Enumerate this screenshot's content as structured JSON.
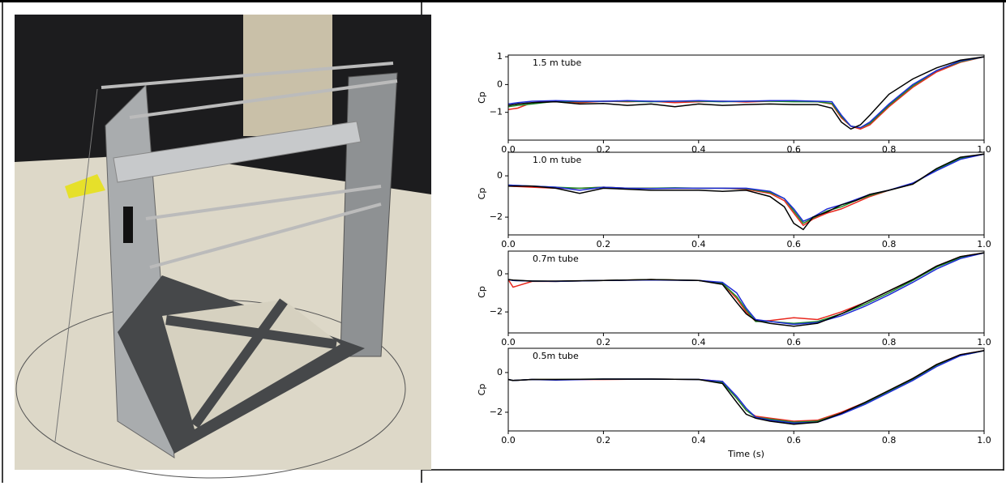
{
  "chart_data": [
    {
      "type": "line",
      "annotation": "1.5 m tube",
      "y_label": "Cp",
      "x": [
        0,
        0.02,
        0.05,
        0.1,
        0.15,
        0.2,
        0.25,
        0.3,
        0.35,
        0.4,
        0.45,
        0.5,
        0.55,
        0.6,
        0.65,
        0.68,
        0.7,
        0.72,
        0.74,
        0.76,
        0.8,
        0.85,
        0.9,
        0.95,
        1.0
      ],
      "series": [
        {
          "color": "#e8281e",
          "values": [
            -0.9,
            -0.85,
            -0.65,
            -0.6,
            -0.65,
            -0.6,
            -0.62,
            -0.6,
            -0.65,
            -0.62,
            -0.6,
            -0.63,
            -0.6,
            -0.6,
            -0.62,
            -0.7,
            -1.2,
            -1.5,
            -1.6,
            -1.45,
            -0.8,
            -0.1,
            0.45,
            0.8,
            1.0
          ]
        },
        {
          "color": "#1e8c2a",
          "values": [
            -0.8,
            -0.75,
            -0.7,
            -0.6,
            -0.62,
            -0.6,
            -0.6,
            -0.62,
            -0.6,
            -0.6,
            -0.62,
            -0.6,
            -0.6,
            -0.62,
            -0.62,
            -0.68,
            -1.15,
            -1.5,
            -1.55,
            -1.4,
            -0.75,
            -0.05,
            0.5,
            0.82,
            1.0
          ]
        },
        {
          "color": "#1f2bd6",
          "values": [
            -0.7,
            -0.65,
            -0.6,
            -0.58,
            -0.6,
            -0.6,
            -0.58,
            -0.6,
            -0.6,
            -0.58,
            -0.6,
            -0.6,
            -0.58,
            -0.58,
            -0.6,
            -0.62,
            -1.1,
            -1.5,
            -1.55,
            -1.35,
            -0.7,
            0.0,
            0.5,
            0.85,
            1.0
          ]
        },
        {
          "color": "#000000",
          "values": [
            -0.75,
            -0.7,
            -0.65,
            -0.62,
            -0.7,
            -0.68,
            -0.75,
            -0.7,
            -0.8,
            -0.7,
            -0.75,
            -0.72,
            -0.7,
            -0.72,
            -0.72,
            -0.85,
            -1.35,
            -1.6,
            -1.45,
            -1.1,
            -0.35,
            0.2,
            0.6,
            0.88,
            1.0
          ]
        }
      ],
      "xlim": [
        0,
        1
      ],
      "ylim": [
        -2.0,
        1.06
      ],
      "xticks": [
        {
          "value": 0,
          "label": "0.0"
        },
        0.2,
        0.4,
        0.6,
        0.8,
        {
          "value": 1,
          "label": "1.0"
        }
      ],
      "yticks": [
        {
          "value": -1,
          "label": "−1"
        },
        0,
        1
      ]
    },
    {
      "type": "line",
      "annotation": "1.0 m tube",
      "y_label": "Cp",
      "x": [
        0,
        0.05,
        0.1,
        0.15,
        0.2,
        0.25,
        0.3,
        0.35,
        0.4,
        0.45,
        0.5,
        0.55,
        0.58,
        0.6,
        0.62,
        0.64,
        0.67,
        0.7,
        0.73,
        0.76,
        0.8,
        0.85,
        0.9,
        0.95,
        1.0
      ],
      "series": [
        {
          "color": "#e8281e",
          "values": [
            -0.5,
            -0.55,
            -0.6,
            -0.6,
            -0.55,
            -0.6,
            -0.6,
            -0.6,
            -0.6,
            -0.6,
            -0.65,
            -0.85,
            -1.2,
            -1.8,
            -2.4,
            -2.1,
            -1.8,
            -1.6,
            -1.3,
            -1.0,
            -0.7,
            -0.4,
            0.3,
            0.85,
            1.05
          ]
        },
        {
          "color": "#1e8c2a",
          "values": [
            -0.45,
            -0.5,
            -0.55,
            -0.6,
            -0.55,
            -0.6,
            -0.6,
            -0.58,
            -0.6,
            -0.6,
            -0.62,
            -0.8,
            -1.1,
            -1.7,
            -2.3,
            -2.05,
            -1.7,
            -1.5,
            -1.2,
            -0.95,
            -0.7,
            -0.4,
            0.3,
            0.85,
            1.05
          ]
        },
        {
          "color": "#1f2bd6",
          "values": [
            -0.45,
            -0.5,
            -0.55,
            -0.7,
            -0.55,
            -0.6,
            -0.62,
            -0.6,
            -0.6,
            -0.6,
            -0.6,
            -0.75,
            -1.1,
            -1.6,
            -2.2,
            -2.0,
            -1.6,
            -1.4,
            -1.15,
            -0.9,
            -0.7,
            -0.35,
            0.25,
            0.8,
            1.05
          ]
        },
        {
          "color": "#000000",
          "values": [
            -0.5,
            -0.5,
            -0.6,
            -0.85,
            -0.6,
            -0.65,
            -0.7,
            -0.7,
            -0.7,
            -0.75,
            -0.7,
            -1.0,
            -1.5,
            -2.3,
            -2.6,
            -2.0,
            -1.75,
            -1.4,
            -1.2,
            -0.9,
            -0.7,
            -0.4,
            0.35,
            0.9,
            1.05
          ]
        }
      ],
      "xlim": [
        0,
        1
      ],
      "ylim": [
        -2.86,
        1.14
      ],
      "xticks": [
        {
          "value": 0,
          "label": "0.0"
        },
        0.2,
        0.4,
        0.6,
        0.8,
        {
          "value": 1,
          "label": "1.0"
        }
      ],
      "yticks": [
        {
          "value": -2,
          "label": "−2"
        },
        0
      ]
    },
    {
      "type": "line",
      "annotation": "0.7m tube",
      "y_label": "Cp",
      "x": [
        0,
        0.01,
        0.05,
        0.1,
        0.2,
        0.3,
        0.4,
        0.45,
        0.48,
        0.5,
        0.52,
        0.55,
        0.6,
        0.65,
        0.7,
        0.75,
        0.8,
        0.85,
        0.9,
        0.95,
        1.0
      ],
      "series": [
        {
          "color": "#e8281e",
          "values": [
            -0.3,
            -0.7,
            -0.4,
            -0.4,
            -0.35,
            -0.3,
            -0.35,
            -0.5,
            -1.3,
            -2.0,
            -2.5,
            -2.45,
            -2.3,
            -2.4,
            -2.0,
            -1.5,
            -0.9,
            -0.3,
            0.4,
            0.9,
            1.1
          ]
        },
        {
          "color": "#1e8c2a",
          "values": [
            -0.3,
            -0.35,
            -0.38,
            -0.4,
            -0.35,
            -0.3,
            -0.35,
            -0.5,
            -1.2,
            -1.9,
            -2.5,
            -2.5,
            -2.6,
            -2.5,
            -2.1,
            -1.6,
            -1.0,
            -0.35,
            0.35,
            0.85,
            1.1
          ]
        },
        {
          "color": "#1f2bd6",
          "values": [
            -0.3,
            -0.35,
            -0.38,
            -0.4,
            -0.35,
            -0.32,
            -0.35,
            -0.45,
            -1.0,
            -1.8,
            -2.4,
            -2.5,
            -2.65,
            -2.55,
            -2.2,
            -1.7,
            -1.1,
            -0.45,
            0.25,
            0.8,
            1.1
          ]
        },
        {
          "color": "#000000",
          "values": [
            -0.3,
            -0.33,
            -0.38,
            -0.38,
            -0.35,
            -0.3,
            -0.35,
            -0.55,
            -1.5,
            -2.1,
            -2.45,
            -2.6,
            -2.75,
            -2.6,
            -2.1,
            -1.5,
            -0.9,
            -0.3,
            0.4,
            0.9,
            1.1
          ]
        }
      ],
      "xlim": [
        0,
        1
      ],
      "ylim": [
        -3.1,
        1.19
      ],
      "xticks": [
        {
          "value": 0,
          "label": "0.0"
        },
        0.2,
        0.4,
        0.6,
        0.8,
        {
          "value": 1,
          "label": "1.0"
        }
      ],
      "yticks": [
        {
          "value": -2,
          "label": "−2"
        },
        0
      ]
    },
    {
      "type": "line",
      "annotation": "0.5m tube",
      "y_label": "Cp",
      "x_label": "Time (s)",
      "x": [
        0,
        0.01,
        0.05,
        0.1,
        0.2,
        0.3,
        0.4,
        0.45,
        0.48,
        0.5,
        0.52,
        0.55,
        0.6,
        0.65,
        0.7,
        0.75,
        0.8,
        0.85,
        0.9,
        0.95,
        1.0
      ],
      "series": [
        {
          "color": "#e8281e",
          "values": [
            -0.35,
            -0.4,
            -0.35,
            -0.35,
            -0.35,
            -0.33,
            -0.35,
            -0.45,
            -1.3,
            -1.9,
            -2.2,
            -2.3,
            -2.45,
            -2.4,
            -2.0,
            -1.5,
            -0.9,
            -0.3,
            0.4,
            0.9,
            1.1
          ]
        },
        {
          "color": "#1e8c2a",
          "values": [
            -0.35,
            -0.4,
            -0.35,
            -0.35,
            -0.33,
            -0.33,
            -0.35,
            -0.5,
            -1.3,
            -1.9,
            -2.25,
            -2.35,
            -2.5,
            -2.45,
            -2.05,
            -1.55,
            -0.95,
            -0.35,
            0.35,
            0.85,
            1.1
          ]
        },
        {
          "color": "#1f2bd6",
          "values": [
            -0.35,
            -0.4,
            -0.35,
            -0.38,
            -0.33,
            -0.33,
            -0.35,
            -0.45,
            -1.2,
            -1.8,
            -2.25,
            -2.4,
            -2.55,
            -2.5,
            -2.1,
            -1.6,
            -1.0,
            -0.4,
            0.3,
            0.85,
            1.1
          ]
        },
        {
          "color": "#000000",
          "values": [
            -0.35,
            -0.4,
            -0.35,
            -0.35,
            -0.33,
            -0.33,
            -0.35,
            -0.55,
            -1.5,
            -2.1,
            -2.3,
            -2.45,
            -2.6,
            -2.5,
            -2.05,
            -1.5,
            -0.9,
            -0.3,
            0.4,
            0.9,
            1.1
          ]
        }
      ],
      "xlim": [
        0,
        1
      ],
      "ylim": [
        -2.94,
        1.22
      ],
      "xticks": [
        {
          "value": 0,
          "label": "0.0"
        },
        0.2,
        0.4,
        0.6,
        0.8,
        {
          "value": 1,
          "label": "1.0"
        }
      ],
      "yticks": [
        {
          "value": -2,
          "label": "−2"
        },
        0
      ]
    }
  ]
}
